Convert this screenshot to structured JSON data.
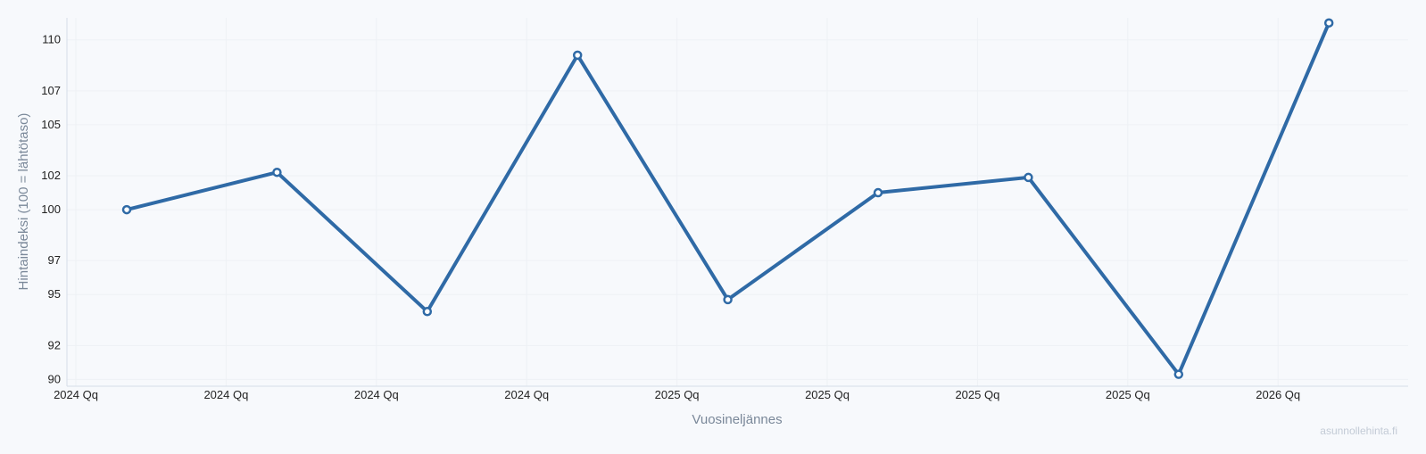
{
  "chart_data": {
    "type": "line",
    "title": "",
    "xlabel": "Vuosineljännes",
    "ylabel": "Hintaindeksi (100 = lähtötaso)",
    "x_tick_labels": [
      "2024 Qq",
      "2024 Qq",
      "2024 Qq",
      "2024 Qq",
      "2025 Qq",
      "2025 Qq",
      "2025 Qq",
      "2025 Qq",
      "2026 Qq"
    ],
    "y_ticks": [
      90,
      92,
      95,
      97,
      100,
      102,
      105,
      107,
      110
    ],
    "ylim": [
      89.6,
      111.3
    ],
    "grid": true,
    "legend": "none",
    "series": [
      {
        "color": "#2f6aa6",
        "values": [
          100.0,
          102.2,
          94.0,
          109.1,
          94.7,
          101.0,
          101.9,
          90.3,
          111.0
        ]
      }
    ]
  },
  "watermark": "asunnollehinta.fi",
  "colors": {
    "background": "#f7f9fc",
    "grid": "#eef1f5",
    "axis": "#d5dde8",
    "line": "#2f6aa6"
  }
}
